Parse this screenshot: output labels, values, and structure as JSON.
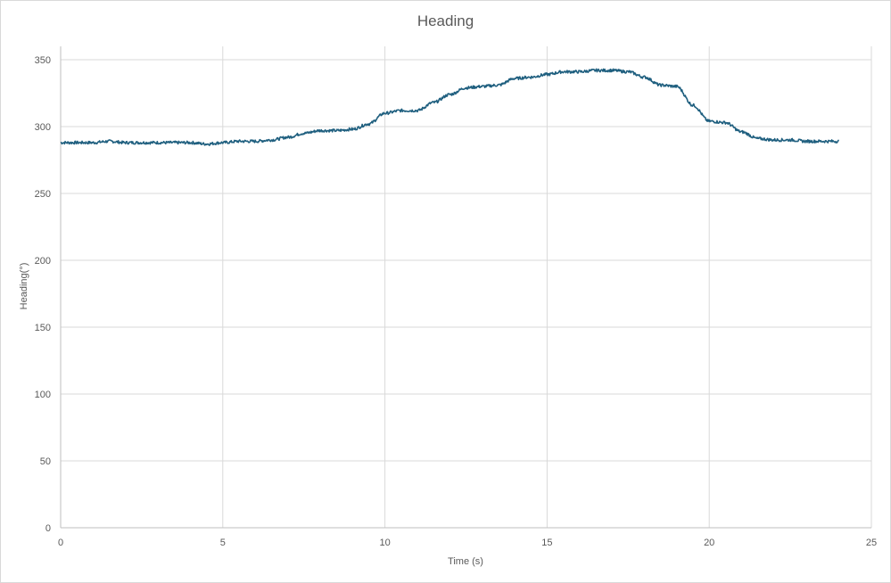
{
  "chart_data": {
    "type": "line",
    "title": "Heading",
    "xlabel": "Time (s)",
    "ylabel": "Heading(°)",
    "xlim": [
      0,
      25
    ],
    "ylim": [
      0,
      360
    ],
    "x_ticks": [
      0,
      5,
      10,
      15,
      20,
      25
    ],
    "y_ticks": [
      0,
      50,
      100,
      150,
      200,
      250,
      300,
      350
    ],
    "grid": true,
    "legend": "none",
    "line_color": "#1f5f7f",
    "series": [
      {
        "x": [
          0,
          0.5,
          1,
          1.5,
          2,
          2.5,
          3,
          3.5,
          4,
          4.5,
          5,
          5.5,
          6,
          6.5,
          7,
          7.5,
          8,
          8.5,
          9,
          9.5,
          10,
          10.5,
          11,
          11.5,
          12,
          12.5,
          13,
          13.5,
          14,
          14.5,
          15,
          15.5,
          16,
          16.5,
          17,
          17.5,
          18,
          18.5,
          19,
          19.5,
          20,
          20.5,
          21,
          21.5,
          22,
          22.5,
          23,
          23.5,
          24
        ],
        "values": [
          288,
          288,
          288,
          289,
          288,
          288,
          288,
          288,
          288,
          287,
          288,
          289,
          289,
          290,
          292,
          295,
          297,
          297,
          298,
          302,
          310,
          312,
          312,
          318,
          324,
          329,
          330,
          331,
          336,
          337,
          339,
          341,
          341,
          342,
          342,
          341,
          337,
          331,
          330,
          316,
          304,
          303,
          296,
          291,
          290,
          290,
          289,
          289,
          289
        ]
      }
    ]
  }
}
